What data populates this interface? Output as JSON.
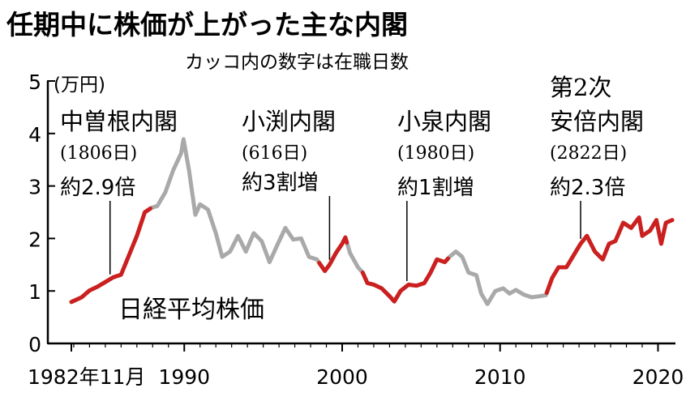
{
  "chart_data": {
    "type": "line",
    "title": "任期中に株価が上がった主な内閣",
    "subtitle": "カッコ内の数字は在職日数",
    "ylabel": "(万円)",
    "ylim": [
      0,
      5
    ],
    "yticks": [
      "0",
      "1",
      "2",
      "3",
      "4",
      "5"
    ],
    "xlim": [
      1982.85,
      2020.9
    ],
    "xticks": [
      {
        "x": 1982.85,
        "label": "1982年11月"
      },
      {
        "x": 1990,
        "label": "1990"
      },
      {
        "x": 2000,
        "label": "2000"
      },
      {
        "x": 2010,
        "label": "2010"
      },
      {
        "x": 2020,
        "label": "2020"
      }
    ],
    "series_name": "日経平均株価",
    "colors": {
      "highlight": "#cc1f1f",
      "base": "#a9a9a9",
      "axis": "#000000"
    },
    "series": [
      {
        "x": 1982.85,
        "y": 0.79
      },
      {
        "x": 1983.5,
        "y": 0.88
      },
      {
        "x": 1984.0,
        "y": 1.01
      },
      {
        "x": 1984.5,
        "y": 1.08
      },
      {
        "x": 1985.0,
        "y": 1.17
      },
      {
        "x": 1985.5,
        "y": 1.26
      },
      {
        "x": 1986.0,
        "y": 1.31
      },
      {
        "x": 1986.5,
        "y": 1.68
      },
      {
        "x": 1987.0,
        "y": 2.05
      },
      {
        "x": 1987.5,
        "y": 2.5
      },
      {
        "x": 1987.9,
        "y": 2.58
      },
      {
        "x": 1988.3,
        "y": 2.62
      },
      {
        "x": 1988.8,
        "y": 2.88
      },
      {
        "x": 1989.3,
        "y": 3.3
      },
      {
        "x": 1989.8,
        "y": 3.62
      },
      {
        "x": 1989.95,
        "y": 3.89
      },
      {
        "x": 1990.3,
        "y": 3.3
      },
      {
        "x": 1990.7,
        "y": 2.45
      },
      {
        "x": 1991.0,
        "y": 2.65
      },
      {
        "x": 1991.5,
        "y": 2.55
      },
      {
        "x": 1992.0,
        "y": 2.1
      },
      {
        "x": 1992.4,
        "y": 1.65
      },
      {
        "x": 1992.9,
        "y": 1.75
      },
      {
        "x": 1993.4,
        "y": 2.05
      },
      {
        "x": 1993.9,
        "y": 1.75
      },
      {
        "x": 1994.4,
        "y": 2.1
      },
      {
        "x": 1994.9,
        "y": 1.95
      },
      {
        "x": 1995.4,
        "y": 1.55
      },
      {
        "x": 1995.9,
        "y": 1.88
      },
      {
        "x": 1996.4,
        "y": 2.2
      },
      {
        "x": 1996.9,
        "y": 1.98
      },
      {
        "x": 1997.4,
        "y": 2.0
      },
      {
        "x": 1997.9,
        "y": 1.65
      },
      {
        "x": 1998.4,
        "y": 1.6
      },
      {
        "x": 1998.9,
        "y": 1.38
      },
      {
        "x": 1999.2,
        "y": 1.5
      },
      {
        "x": 1999.6,
        "y": 1.72
      },
      {
        "x": 2000.0,
        "y": 1.9
      },
      {
        "x": 2000.2,
        "y": 2.02
      },
      {
        "x": 2000.5,
        "y": 1.72
      },
      {
        "x": 2001.0,
        "y": 1.45
      },
      {
        "x": 2001.3,
        "y": 1.35
      },
      {
        "x": 2001.6,
        "y": 1.15
      },
      {
        "x": 2002.0,
        "y": 1.12
      },
      {
        "x": 2002.5,
        "y": 1.05
      },
      {
        "x": 2003.0,
        "y": 0.9
      },
      {
        "x": 2003.3,
        "y": 0.8
      },
      {
        "x": 2003.7,
        "y": 1.0
      },
      {
        "x": 2004.2,
        "y": 1.12
      },
      {
        "x": 2004.7,
        "y": 1.1
      },
      {
        "x": 2005.2,
        "y": 1.15
      },
      {
        "x": 2005.6,
        "y": 1.35
      },
      {
        "x": 2006.0,
        "y": 1.6
      },
      {
        "x": 2006.5,
        "y": 1.55
      },
      {
        "x": 2006.8,
        "y": 1.65
      },
      {
        "x": 2007.2,
        "y": 1.75
      },
      {
        "x": 2007.6,
        "y": 1.65
      },
      {
        "x": 2008.0,
        "y": 1.35
      },
      {
        "x": 2008.5,
        "y": 1.3
      },
      {
        "x": 2008.8,
        "y": 0.95
      },
      {
        "x": 2009.2,
        "y": 0.75
      },
      {
        "x": 2009.7,
        "y": 1.0
      },
      {
        "x": 2010.2,
        "y": 1.05
      },
      {
        "x": 2010.6,
        "y": 0.95
      },
      {
        "x": 2011.0,
        "y": 1.02
      },
      {
        "x": 2011.5,
        "y": 0.93
      },
      {
        "x": 2012.0,
        "y": 0.88
      },
      {
        "x": 2012.5,
        "y": 0.9
      },
      {
        "x": 2012.9,
        "y": 0.92
      },
      {
        "x": 2013.3,
        "y": 1.25
      },
      {
        "x": 2013.7,
        "y": 1.45
      },
      {
        "x": 2014.2,
        "y": 1.45
      },
      {
        "x": 2014.6,
        "y": 1.65
      },
      {
        "x": 2015.1,
        "y": 1.9
      },
      {
        "x": 2015.5,
        "y": 2.05
      },
      {
        "x": 2016.0,
        "y": 1.75
      },
      {
        "x": 2016.5,
        "y": 1.6
      },
      {
        "x": 2016.9,
        "y": 1.9
      },
      {
        "x": 2017.3,
        "y": 1.95
      },
      {
        "x": 2017.8,
        "y": 2.3
      },
      {
        "x": 2018.3,
        "y": 2.2
      },
      {
        "x": 2018.8,
        "y": 2.4
      },
      {
        "x": 2019.0,
        "y": 2.05
      },
      {
        "x": 2019.5,
        "y": 2.15
      },
      {
        "x": 2019.9,
        "y": 2.35
      },
      {
        "x": 2020.2,
        "y": 1.9
      },
      {
        "x": 2020.5,
        "y": 2.3
      },
      {
        "x": 2020.9,
        "y": 2.35
      }
    ],
    "highlight_ranges": [
      [
        1982.85,
        1987.85
      ],
      [
        1998.55,
        2000.3
      ],
      [
        2001.3,
        2006.7
      ],
      [
        2012.95,
        2020.9
      ]
    ],
    "annotations": [
      {
        "name": "中曽根内閣",
        "days": "(1806日)",
        "change": "約2.9倍",
        "pointer_x": 1985.3
      },
      {
        "name": "小渕内閣",
        "days": "(616日)",
        "change": "約3割増",
        "pointer_x": 1999.2
      },
      {
        "name": "小泉内閣",
        "days": "(1980日)",
        "change": "約1割増",
        "pointer_x": 2004.1
      },
      {
        "name_lines": [
          "第2次",
          "安倍内閣"
        ],
        "days": "(2822日)",
        "change": "約2.3倍",
        "pointer_x": 2015.1
      }
    ]
  }
}
